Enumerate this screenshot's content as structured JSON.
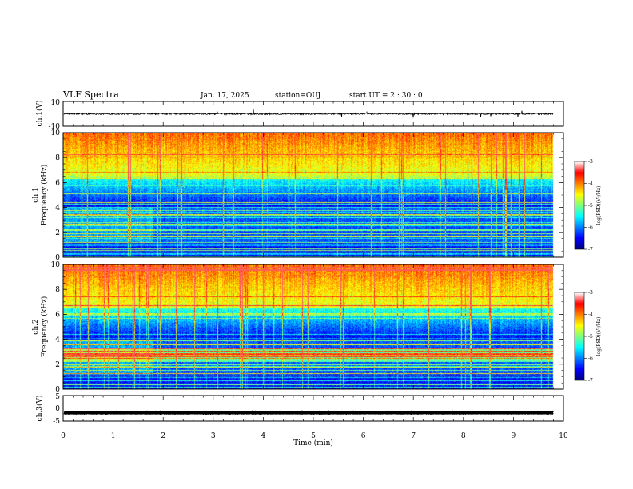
{
  "header": {
    "title": "VLF Spectra",
    "date": "Jan. 17, 2025",
    "station": "station=OUJ",
    "start_ut": "start UT =  2 : 30 : 0"
  },
  "chart_data": [
    {
      "type": "line",
      "id": "ch1-waveform",
      "ylabel": "ch.1(V)",
      "ylim": [
        -10,
        10
      ],
      "yticks": [
        "10",
        "-10"
      ],
      "xlim": [
        0,
        10
      ],
      "data_xmax": 9.8,
      "baseline": 0,
      "noise_amplitude": 1.2,
      "line_color": "#000000"
    },
    {
      "type": "heatmap",
      "id": "ch1-spectrogram",
      "ylabel": "ch.1\nFrequency (kHz)",
      "ylim": [
        0,
        10
      ],
      "yticks": [
        "0",
        "2",
        "4",
        "6",
        "8",
        "10"
      ],
      "xlim": [
        0,
        10
      ],
      "data_xmax": 9.8,
      "colorbar": {
        "label": "log(PSD)(V²/Hz)",
        "range": [
          -7,
          -3
        ],
        "ticks": [
          "-3",
          "-4",
          "-5",
          "-6",
          "-7"
        ]
      }
    },
    {
      "type": "heatmap",
      "id": "ch2-spectrogram",
      "ylabel": "ch.2\nFrequency (kHz)",
      "ylim": [
        0,
        10
      ],
      "yticks": [
        "0",
        "2",
        "4",
        "6",
        "8",
        "10"
      ],
      "xlim": [
        0,
        10
      ],
      "data_xmax": 9.8,
      "colorbar": {
        "label": "log(PSD)(V²/Hz)",
        "range": [
          -7,
          -3
        ],
        "ticks": [
          "-3",
          "-4",
          "-5",
          "-6",
          "-7"
        ]
      }
    },
    {
      "type": "line",
      "id": "ch3-waveform",
      "ylabel": "ch.3(V)",
      "ylim": [
        -5,
        5
      ],
      "yticks": [
        "5",
        "0",
        "-5"
      ],
      "xlim": [
        0,
        10
      ],
      "data_xmax": 9.8,
      "baseline": -1.7,
      "noise_amplitude": 0.15,
      "line_color": "#000000"
    }
  ],
  "xaxis": {
    "label": "Time (min)",
    "ticks": [
      "0",
      "1",
      "2",
      "3",
      "4",
      "5",
      "6",
      "7",
      "8",
      "9",
      "10"
    ]
  },
  "colors": {
    "colormap": [
      "#000080",
      "#0000ff",
      "#0080ff",
      "#00ffff",
      "#80ff80",
      "#ffff00",
      "#ff8000",
      "#ff0000",
      "#ffffff"
    ]
  }
}
